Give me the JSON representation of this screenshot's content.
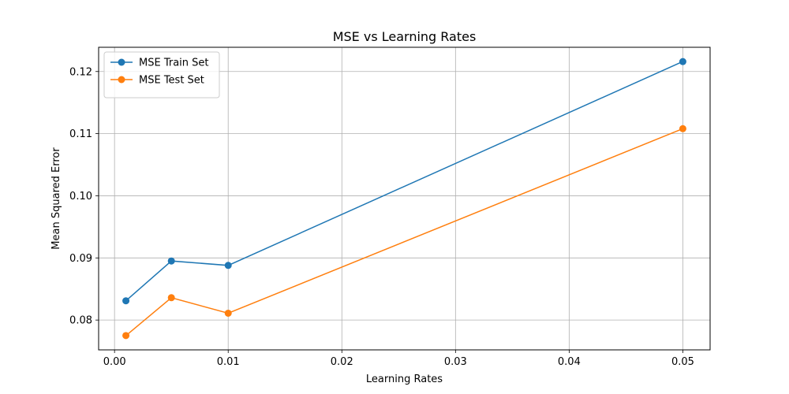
{
  "chart_data": {
    "type": "line",
    "title": "MSE vs Learning Rates",
    "xlabel": "Learning Rates",
    "ylabel": "Mean Squared Error",
    "xlim": [
      -0.0014,
      0.0524
    ],
    "ylim": [
      0.0752,
      0.1239
    ],
    "xticks": [
      0.0,
      0.01,
      0.02,
      0.03,
      0.04,
      0.05
    ],
    "xtick_labels": [
      "0.00",
      "0.01",
      "0.02",
      "0.03",
      "0.04",
      "0.05"
    ],
    "yticks": [
      0.08,
      0.09,
      0.1,
      0.11,
      0.12
    ],
    "ytick_labels": [
      "0.08",
      "0.09",
      "0.10",
      "0.11",
      "0.12"
    ],
    "grid": true,
    "legend_position": "upper-left",
    "series": [
      {
        "name": "MSE Train Set",
        "color": "#1f77b4",
        "marker": "circle",
        "x": [
          0.001,
          0.005,
          0.01,
          0.05
        ],
        "y": [
          0.0831,
          0.0895,
          0.0888,
          0.1216
        ]
      },
      {
        "name": "MSE Test Set",
        "color": "#ff7f0e",
        "marker": "circle",
        "x": [
          0.001,
          0.005,
          0.01,
          0.05
        ],
        "y": [
          0.0775,
          0.0836,
          0.0811,
          0.1108
        ]
      }
    ]
  }
}
